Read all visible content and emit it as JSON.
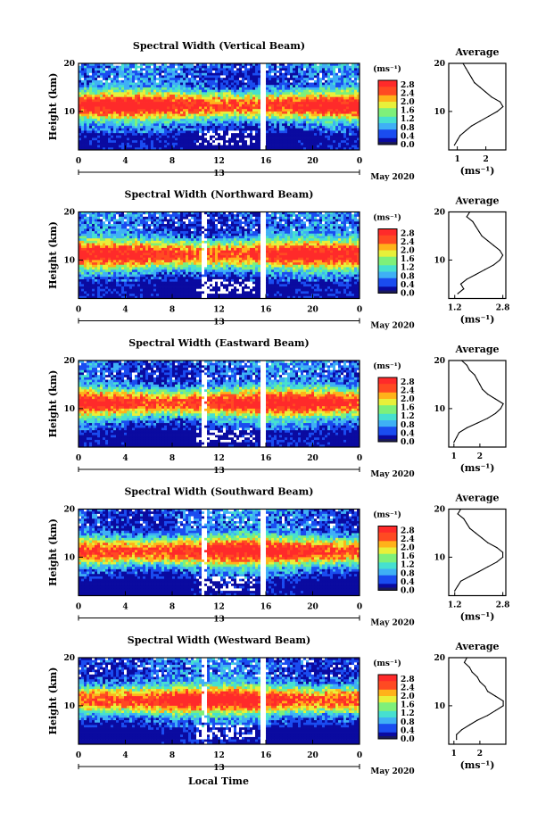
{
  "chart_data": {
    "type": "heatmap",
    "shared": {
      "ylabel": "Height (km)",
      "xlabel": "Local Time",
      "x_ticks": [
        "0",
        "4",
        "8",
        "12",
        "16",
        "20",
        "0"
      ],
      "xlim": [
        0,
        24
      ],
      "y_ticks": [
        "10",
        "20"
      ],
      "ylim": [
        2,
        20
      ],
      "day_label": "13",
      "month_label": "May 2020",
      "colorbar_unit": "(ms⁻¹)",
      "colorbar_ticks": [
        "0.0",
        "0.4",
        "0.8",
        "1.2",
        "1.6",
        "2.0",
        "2.4",
        "2.8"
      ],
      "colorbar_range": [
        0,
        3.0
      ],
      "avg_title": "Average",
      "avg_xlabel": "(ms⁻¹)",
      "avg_ylim": [
        2,
        20
      ],
      "colormap": [
        "#0a0aa0",
        "#1a4cf0",
        "#3fb0f5",
        "#46e0d0",
        "#7ef07a",
        "#e8f03a",
        "#ffb21a",
        "#ff4a22",
        "#ff2a2a"
      ]
    },
    "panels": [
      {
        "title": "Spectral Width (Vertical Beam)",
        "avg_x_ticks": [
          "1",
          "2"
        ],
        "avg_xlim": [
          0.7,
          2.7
        ],
        "heights": [
          3,
          4,
          5,
          6,
          7,
          8,
          9,
          10,
          11,
          12,
          13,
          14,
          15,
          16,
          17,
          18,
          19,
          20
        ],
        "average": [
          0.9,
          1.0,
          1.1,
          1.3,
          1.5,
          1.8,
          2.1,
          2.4,
          2.6,
          2.5,
          2.2,
          2.0,
          1.8,
          1.6,
          1.5,
          1.4,
          1.3,
          1.2
        ]
      },
      {
        "title": "Spectral Width (Northward Beam)",
        "avg_x_ticks": [
          "1.2",
          "2.8"
        ],
        "avg_xlim": [
          1.0,
          2.9
        ],
        "heights": [
          3,
          4,
          5,
          6,
          7,
          8,
          9,
          10,
          11,
          12,
          13,
          14,
          15,
          16,
          17,
          18,
          19,
          20
        ],
        "average": [
          1.3,
          1.5,
          1.4,
          1.6,
          1.9,
          2.2,
          2.5,
          2.7,
          2.8,
          2.7,
          2.5,
          2.3,
          2.1,
          2.0,
          1.9,
          1.8,
          1.6,
          1.7
        ]
      },
      {
        "title": "Spectral Width (Eastward Beam)",
        "avg_x_ticks": [
          "1",
          "2"
        ],
        "avg_xlim": [
          0.8,
          3.0
        ],
        "heights": [
          3,
          4,
          5,
          6,
          7,
          8,
          9,
          10,
          11,
          12,
          13,
          14,
          15,
          16,
          17,
          18,
          19,
          20
        ],
        "average": [
          1.0,
          1.1,
          1.2,
          1.5,
          1.9,
          2.3,
          2.6,
          2.8,
          2.9,
          2.6,
          2.3,
          2.1,
          2.0,
          1.9,
          1.8,
          1.6,
          1.5,
          1.3
        ]
      },
      {
        "title": "Spectral Width (Southward Beam)",
        "avg_x_ticks": [
          "1.2",
          "2.8"
        ],
        "avg_xlim": [
          1.0,
          2.9
        ],
        "heights": [
          3,
          4,
          5,
          6,
          7,
          8,
          9,
          10,
          11,
          12,
          13,
          14,
          15,
          16,
          17,
          18,
          19,
          20
        ],
        "average": [
          1.2,
          1.3,
          1.4,
          1.7,
          2.0,
          2.3,
          2.6,
          2.8,
          2.8,
          2.6,
          2.3,
          2.1,
          1.9,
          1.7,
          1.6,
          1.5,
          1.3,
          1.4
        ]
      },
      {
        "title": "Spectral Width (Westward Beam)",
        "avg_x_ticks": [
          "1",
          "2"
        ],
        "avg_xlim": [
          0.8,
          3.0
        ],
        "heights": [
          3,
          4,
          5,
          6,
          7,
          8,
          9,
          10,
          11,
          12,
          13,
          14,
          15,
          16,
          17,
          18,
          19,
          20
        ],
        "average": [
          1.1,
          1.1,
          1.3,
          1.6,
          1.9,
          2.3,
          2.6,
          2.9,
          2.9,
          2.6,
          2.3,
          2.2,
          2.0,
          1.9,
          1.7,
          1.6,
          1.4,
          1.5
        ]
      }
    ]
  }
}
